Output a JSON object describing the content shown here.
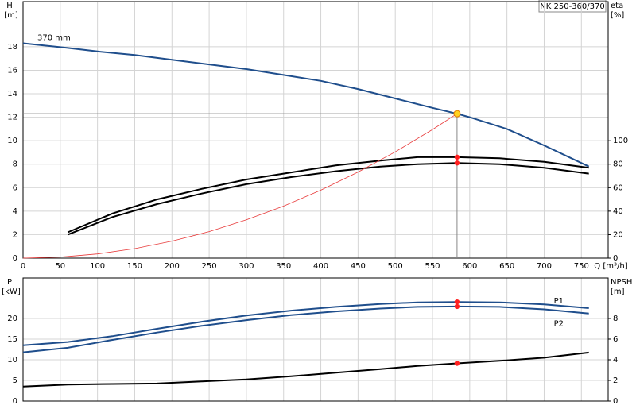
{
  "chart_data": [
    {
      "type": "line",
      "title": "NK 250-360/370",
      "y_label": "H",
      "y_unit": "[m]",
      "y2_label": "eta",
      "y2_unit": "[%]",
      "x_label": "Q [m³/h]",
      "xlim": [
        0,
        786
      ],
      "xticks": [
        0,
        50,
        100,
        150,
        200,
        250,
        300,
        350,
        400,
        450,
        500,
        550,
        600,
        650,
        700,
        750
      ],
      "ylim": [
        0,
        21.85
      ],
      "yticks": [
        0,
        2,
        4,
        6,
        8,
        10,
        12,
        14,
        16,
        18
      ],
      "y2lim": [
        0,
        218.5
      ],
      "y2ticks": [
        0,
        20,
        40,
        60,
        80,
        100
      ],
      "grid": true,
      "series": [
        {
          "name": "370 mm",
          "color": "#1f4e8c",
          "x": [
            0,
            60,
            100,
            150,
            200,
            250,
            300,
            350,
            400,
            450,
            500,
            550,
            583,
            600,
            650,
            700,
            760
          ],
          "values": [
            18.3,
            17.9,
            17.6,
            17.3,
            16.9,
            16.5,
            16.1,
            15.6,
            15.1,
            14.4,
            13.6,
            12.8,
            12.3,
            12.0,
            11.0,
            9.6,
            7.8
          ]
        },
        {
          "color": "#000000",
          "axis": "y2",
          "x": [
            60,
            120,
            180,
            240,
            300,
            360,
            420,
            480,
            530,
            583,
            640,
            700,
            760
          ],
          "values": [
            22,
            38,
            50,
            59,
            67,
            73,
            79,
            83,
            86,
            86,
            85,
            82,
            77
          ]
        },
        {
          "color": "#000000",
          "axis": "y2",
          "x": [
            60,
            120,
            180,
            240,
            300,
            360,
            420,
            480,
            530,
            583,
            640,
            700,
            760
          ],
          "values": [
            20,
            35,
            46,
            55,
            63,
            69,
            74,
            78,
            80,
            81,
            80,
            77,
            72
          ]
        },
        {
          "color": "#e83a3a",
          "x": [
            0,
            50,
            100,
            150,
            200,
            250,
            300,
            350,
            400,
            450,
            500,
            550,
            583
          ],
          "values": [
            0,
            0.09,
            0.36,
            0.81,
            1.45,
            2.26,
            3.26,
            4.43,
            5.79,
            7.33,
            9.05,
            10.95,
            12.3
          ]
        }
      ],
      "duty_point": {
        "x": 583,
        "y": 12.3
      }
    },
    {
      "type": "line",
      "y_label": "P",
      "y_unit": "[kW]",
      "y2_label": "NPSH",
      "y2_unit": "[m]",
      "xlim": [
        0,
        786
      ],
      "ylim": [
        0,
        29.8
      ],
      "yticks": [
        0,
        5,
        10,
        15,
        20
      ],
      "y2lim": [
        0,
        11.92
      ],
      "y2ticks": [
        0,
        2,
        4,
        6,
        8
      ],
      "grid": true,
      "series": [
        {
          "name": "P1",
          "color": "#1f4e8c",
          "x": [
            0,
            60,
            120,
            180,
            240,
            300,
            360,
            420,
            480,
            530,
            583,
            640,
            700,
            760
          ],
          "values": [
            13.5,
            14.3,
            15.7,
            17.5,
            19.2,
            20.7,
            21.9,
            22.8,
            23.5,
            23.9,
            24.0,
            23.9,
            23.4,
            22.5
          ]
        },
        {
          "name": "P2",
          "color": "#1f4e8c",
          "x": [
            0,
            60,
            120,
            180,
            240,
            300,
            360,
            420,
            480,
            530,
            583,
            640,
            700,
            760
          ],
          "values": [
            11.8,
            12.9,
            14.8,
            16.6,
            18.2,
            19.6,
            20.8,
            21.7,
            22.4,
            22.8,
            22.9,
            22.8,
            22.2,
            21.2
          ]
        },
        {
          "color": "#000000",
          "axis": "y2",
          "x": [
            0,
            60,
            120,
            180,
            240,
            300,
            360,
            420,
            480,
            530,
            583,
            640,
            700,
            760
          ],
          "values": [
            1.4,
            1.6,
            1.65,
            1.7,
            1.9,
            2.1,
            2.4,
            2.75,
            3.1,
            3.4,
            3.65,
            3.9,
            4.2,
            4.7
          ]
        }
      ]
    }
  ]
}
